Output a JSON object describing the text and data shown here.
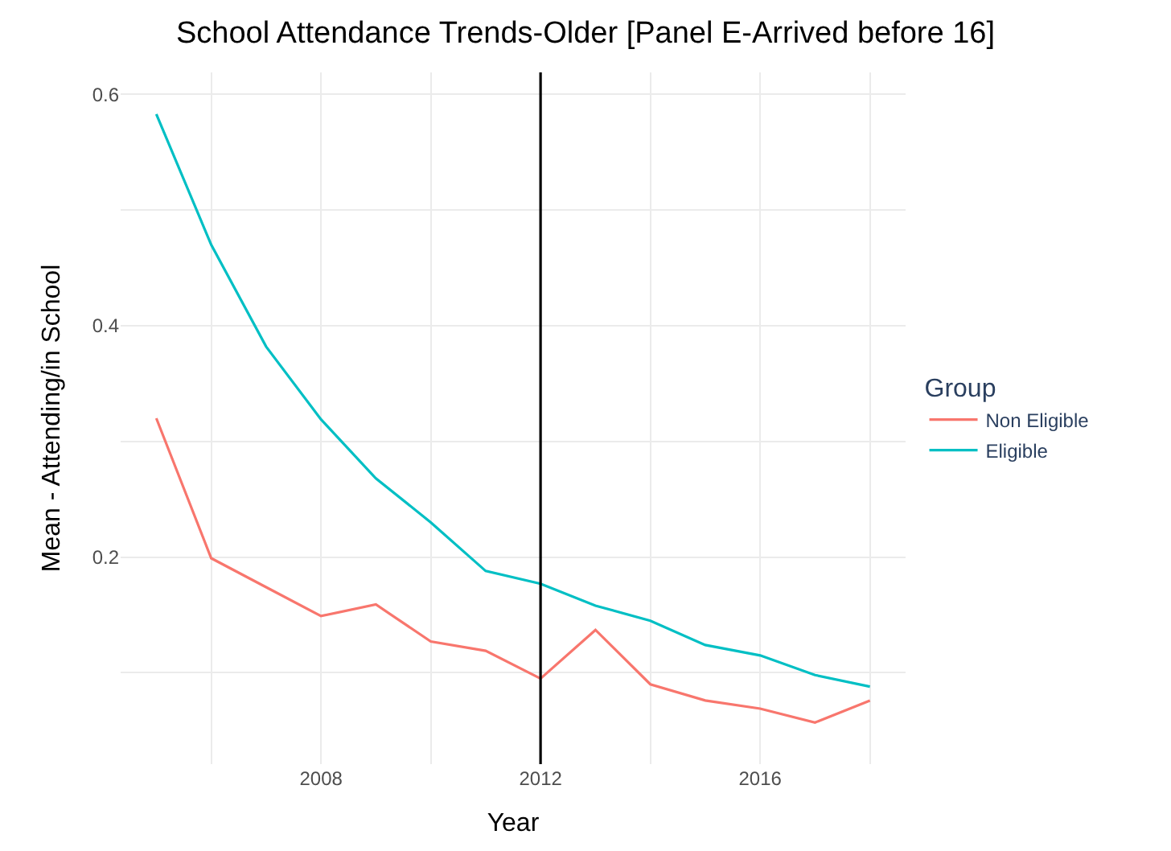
{
  "chart_data": {
    "type": "line",
    "title": "School Attendance Trends-Older [Panel E-Arrived before 16]",
    "xlabel": "Year",
    "ylabel": "Mean - Attending/in School",
    "legend_title": "Group",
    "x": [
      2005,
      2006,
      2007,
      2008,
      2009,
      2010,
      2011,
      2012,
      2013,
      2014,
      2015,
      2016,
      2017,
      2018
    ],
    "series": [
      {
        "name": "Non Eligible",
        "color": "#f8766d",
        "values": [
          0.32,
          0.199,
          0.174,
          0.149,
          0.159,
          0.127,
          0.119,
          0.095,
          0.137,
          0.09,
          0.076,
          0.069,
          0.057,
          0.076
        ]
      },
      {
        "name": "Eligible",
        "color": "#00bfc4",
        "values": [
          0.583,
          0.47,
          0.382,
          0.319,
          0.268,
          0.23,
          0.188,
          0.177,
          0.158,
          0.145,
          0.124,
          0.115,
          0.098,
          0.088
        ]
      }
    ],
    "xlim": [
      2004.35,
      2018.65
    ],
    "ylim": [
      0.021,
      0.619
    ],
    "xticks": [
      {
        "value": 2006,
        "label": null
      },
      2008,
      {
        "value": 2010,
        "label": null
      },
      2012,
      {
        "value": 2014,
        "label": null
      },
      2016,
      {
        "value": 2018,
        "label": null
      }
    ],
    "yticks": [
      {
        "value": 0.1,
        "label": null
      },
      0.2,
      {
        "value": 0.3,
        "label": null
      },
      0.4,
      {
        "value": 0.5,
        "label": null
      },
      0.6
    ],
    "ref_lines": [
      {
        "axis": "x",
        "value": 2012,
        "color": "#000000"
      }
    ],
    "grid": true,
    "legend": "right",
    "line_style": "solid",
    "marker": "none"
  }
}
